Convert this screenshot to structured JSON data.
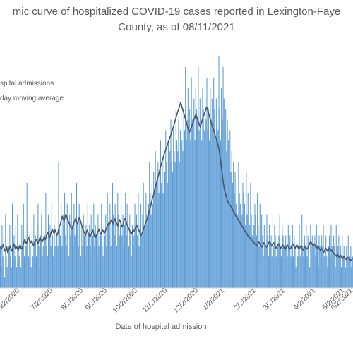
{
  "chart_data": {
    "type": "bar",
    "title_line1": "mic curve of hospitalized COVID-19 cases reported in Lexington-Faye",
    "title_line2": "County, as of 08/11/2021",
    "xlabel": "Date of hospital admission",
    "ylabel": "",
    "x_ticks": [
      "6/2/2020",
      "7/2/2020",
      "8/2/2020",
      "9/2/2020",
      "10/2/2020",
      "11/2/2020",
      "12/2/2020",
      "1/2/2021",
      "2/2/2021",
      "3/2/2021",
      "4/2/2021",
      "5/2/2021",
      "6/2/2021"
    ],
    "legend": [
      "spital admissions",
      "day moving average"
    ],
    "series": [
      {
        "name": "spital admissions",
        "kind": "bar",
        "values": [
          4,
          2,
          6,
          3,
          5,
          1,
          7,
          3,
          2,
          5,
          4,
          6,
          3,
          2,
          8,
          4,
          5,
          3,
          6,
          2,
          7,
          4,
          3,
          5,
          2,
          6,
          4,
          8,
          3,
          5,
          4,
          10,
          6,
          3,
          5,
          4,
          2,
          6,
          3,
          7,
          4,
          5,
          3,
          6,
          8,
          4,
          2,
          5,
          7,
          3,
          4,
          6,
          5,
          9,
          4,
          3,
          7,
          5,
          6,
          4,
          8,
          5,
          3,
          6,
          4,
          7,
          5,
          4,
          12,
          6,
          5,
          8,
          4,
          7,
          6,
          9,
          5,
          4,
          8,
          6,
          3,
          7,
          5,
          9,
          6,
          4,
          8,
          5,
          7,
          10,
          6,
          4,
          8,
          5,
          3,
          6,
          4,
          7,
          5,
          3,
          6,
          4,
          8,
          5,
          6,
          4,
          7,
          3,
          5,
          8,
          4,
          6,
          5,
          3,
          7,
          4,
          6,
          5,
          8,
          4,
          3,
          6,
          5,
          7,
          4,
          9,
          6,
          5,
          8,
          4,
          6,
          10,
          7,
          5,
          8,
          6,
          4,
          9,
          7,
          5,
          6,
          8,
          5,
          7,
          4,
          6,
          9,
          5,
          8,
          6,
          4,
          7,
          5,
          3,
          6,
          4,
          5,
          8,
          6,
          7,
          5,
          9,
          4,
          6,
          8,
          5,
          7,
          10,
          6,
          5,
          9,
          7,
          6,
          8,
          12,
          9,
          7,
          10,
          8,
          11,
          9,
          13,
          10,
          8,
          12,
          9,
          11,
          14,
          10,
          12,
          9,
          13,
          11,
          15,
          12,
          10,
          14,
          11,
          13,
          16,
          12,
          11,
          15,
          13,
          12,
          17,
          14,
          13,
          16,
          12,
          15,
          18,
          14,
          13,
          17,
          15,
          21,
          14,
          16,
          19,
          15,
          17,
          14,
          20,
          16,
          15,
          18,
          14,
          19,
          17,
          16,
          21,
          15,
          18,
          16,
          14,
          19,
          17,
          15,
          18,
          16,
          20,
          15,
          17,
          14,
          19,
          16,
          18,
          15,
          20,
          17,
          14,
          18,
          16,
          15,
          22,
          17,
          14,
          19,
          16,
          21,
          18,
          15,
          17,
          13,
          16,
          14,
          12,
          15,
          11,
          13,
          10,
          12,
          9,
          11,
          8,
          10,
          7,
          12,
          9,
          8,
          11,
          7,
          10,
          9,
          8,
          6,
          11,
          7,
          9,
          8,
          6,
          10,
          7,
          5,
          9,
          6,
          8,
          7,
          5,
          9,
          6,
          4,
          8,
          6,
          7,
          5,
          3,
          6,
          5,
          4,
          7,
          5,
          3,
          6,
          4,
          5,
          3,
          7,
          4,
          6,
          5,
          3,
          6,
          4,
          5,
          7,
          4,
          3,
          6,
          5,
          4,
          2,
          5,
          4,
          3,
          6,
          4,
          5,
          3,
          4,
          6,
          3,
          5,
          4,
          2,
          5,
          3,
          4,
          6,
          3,
          5,
          7,
          4,
          3,
          5,
          4,
          6,
          3,
          5,
          4,
          2,
          6,
          4,
          5,
          3,
          4,
          5,
          3,
          6,
          4,
          2,
          5,
          4,
          3,
          5,
          4,
          6,
          3,
          4,
          5,
          3,
          2,
          4,
          5,
          3,
          6,
          4,
          3,
          5,
          4,
          2,
          6,
          3,
          4,
          5,
          3,
          4,
          2,
          5,
          3,
          4,
          3,
          2,
          4,
          3,
          5,
          2,
          3,
          4,
          2,
          3
        ]
      },
      {
        "name": "day moving average",
        "kind": "line",
        "values": [
          4.0,
          3.7,
          3.9,
          4.1,
          3.8,
          3.5,
          3.6,
          3.9,
          3.4,
          3.6,
          3.8,
          4.0,
          3.7,
          3.5,
          3.9,
          4.2,
          4.0,
          3.7,
          3.9,
          3.8,
          3.6,
          3.9,
          4.1,
          3.8,
          3.7,
          4.0,
          4.3,
          4.6,
          4.4,
          4.2,
          4.5,
          4.8,
          4.6,
          4.4,
          4.3,
          4.5,
          4.2,
          4.0,
          4.3,
          4.5,
          4.6,
          4.4,
          4.2,
          4.5,
          4.8,
          4.6,
          4.5,
          4.4,
          4.7,
          4.9,
          4.6,
          4.8,
          5.1,
          5.3,
          5.0,
          4.8,
          5.1,
          5.4,
          5.6,
          5.3,
          5.2,
          5.5,
          5.3,
          5.0,
          5.2,
          5.6,
          5.9,
          6.1,
          6.5,
          6.8,
          6.6,
          6.4,
          6.7,
          7.0,
          6.8,
          6.5,
          6.3,
          6.1,
          5.9,
          5.7,
          5.6,
          5.9,
          6.2,
          6.4,
          6.6,
          6.3,
          6.1,
          6.4,
          6.7,
          6.5,
          6.2,
          5.9,
          5.6,
          5.4,
          5.2,
          5.0,
          5.3,
          5.5,
          5.2,
          5.0,
          4.9,
          5.1,
          5.3,
          5.5,
          5.2,
          4.9,
          4.8,
          5.0,
          5.2,
          5.4,
          5.6,
          5.3,
          5.1,
          5.3,
          5.5,
          5.4,
          5.2,
          5.4,
          5.6,
          5.8,
          6.0,
          6.2,
          6.1,
          6.3,
          6.5,
          6.3,
          6.1,
          6.4,
          6.6,
          6.3,
          6.1,
          5.9,
          6.2,
          6.5,
          6.3,
          6.0,
          5.8,
          6.1,
          6.4,
          6.6,
          6.4,
          6.1,
          5.9,
          5.7,
          5.5,
          5.3,
          5.1,
          5.3,
          5.5,
          5.4,
          5.6,
          5.8,
          6.0,
          5.8,
          5.6,
          5.4,
          5.2,
          5.0,
          5.2,
          5.4,
          5.7,
          5.9,
          6.2,
          6.4,
          6.6,
          6.9,
          7.3,
          7.6,
          7.9,
          8.3,
          8.6,
          8.9,
          9.3,
          9.6,
          9.9,
          10.3,
          10.6,
          10.9,
          11.3,
          11.6,
          11.9,
          12.2,
          12.5,
          12.8,
          13.0,
          13.3,
          13.5,
          13.8,
          14.0,
          14.3,
          14.5,
          14.8,
          15.0,
          15.3,
          15.6,
          15.9,
          16.2,
          16.5,
          16.8,
          17.0,
          17.3,
          17.6,
          17.4,
          17.1,
          16.8,
          16.5,
          16.2,
          15.9,
          15.6,
          15.3,
          15.0,
          14.8,
          15.0,
          15.2,
          15.5,
          15.7,
          16.0,
          16.2,
          16.5,
          16.3,
          16.0,
          15.8,
          15.5,
          15.3,
          15.6,
          15.9,
          16.2,
          16.4,
          16.7,
          16.9,
          17.2,
          17.0,
          16.7,
          16.4,
          16.1,
          15.8,
          15.5,
          15.2,
          15.0,
          14.7,
          14.4,
          14.1,
          13.8,
          13.5,
          13.2,
          12.6,
          11.9,
          11.2,
          10.5,
          9.9,
          9.4,
          9.0,
          8.7,
          8.4,
          8.2,
          8.0,
          7.9,
          7.8,
          7.6,
          7.5,
          7.3,
          7.2,
          7.0,
          6.8,
          6.7,
          6.5,
          6.4,
          6.3,
          6.1,
          6.0,
          5.8,
          5.7,
          5.5,
          5.4,
          5.3,
          5.2,
          5.0,
          4.9,
          4.8,
          4.7,
          4.6,
          4.5,
          4.4,
          4.3,
          4.2,
          4.1,
          4.0,
          4.2,
          4.4,
          4.3,
          4.1,
          4.0,
          3.9,
          4.1,
          4.3,
          4.2,
          4.0,
          3.9,
          4.0,
          4.2,
          4.4,
          4.3,
          4.1,
          4.0,
          4.2,
          4.3,
          4.1,
          3.9,
          3.8,
          4.0,
          4.2,
          4.1,
          3.9,
          3.8,
          3.9,
          4.1,
          4.0,
          3.8,
          3.7,
          3.9,
          4.1,
          4.0,
          3.8,
          3.7,
          3.8,
          4.0,
          4.2,
          4.1,
          3.9,
          3.8,
          4.0,
          4.1,
          3.9,
          3.7,
          3.8,
          4.0,
          3.9,
          3.7,
          3.6,
          3.8,
          4.0,
          3.9,
          3.7,
          3.8,
          4.0,
          4.2,
          4.4,
          4.3,
          4.1,
          4.0,
          4.2,
          4.1,
          3.9,
          3.8,
          4.0,
          3.9,
          3.7,
          3.6,
          3.8,
          3.7,
          3.5,
          3.4,
          3.6,
          3.8,
          3.7,
          3.5,
          3.6,
          3.8,
          3.7,
          3.5,
          3.6,
          3.4,
          3.3,
          3.2,
          3.1,
          3.0,
          3.2,
          3.1,
          2.9,
          3.0,
          3.1,
          2.9,
          2.8,
          3.0,
          2.9,
          2.8,
          2.7,
          2.8,
          2.9,
          2.8,
          2.7,
          2.6,
          2.7,
          2.8
        ]
      }
    ],
    "colors": {
      "bars": "#5b9bd5",
      "line": "#44546a",
      "text": "#595959"
    },
    "legend_position": "top-left",
    "grid": false
  }
}
